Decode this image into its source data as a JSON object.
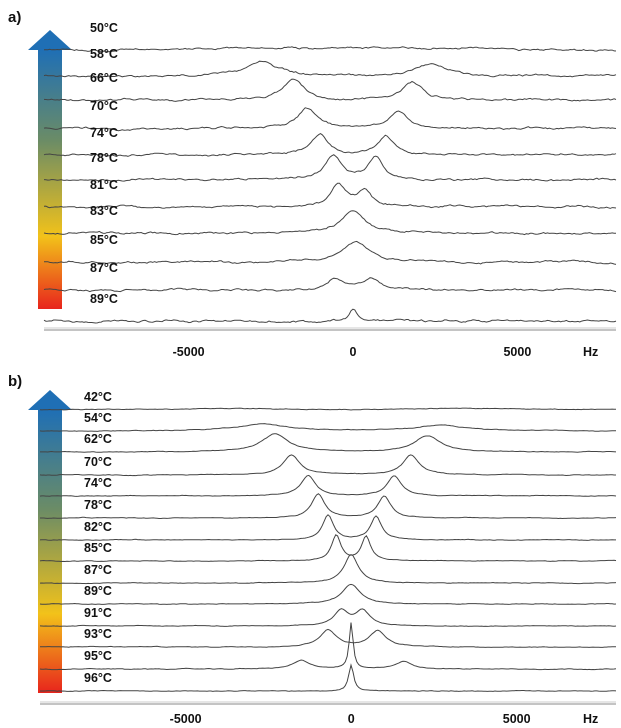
{
  "chart_data": [
    {
      "type": "line",
      "panel_label": "a)",
      "axis_unit": "Hz",
      "x_ticks": [
        -5000,
        0,
        5000
      ],
      "xlim": [
        -9400,
        8000
      ],
      "temperature_arrow_colors": [
        "#1f6fb5",
        "#6b8c66",
        "#f2c21a",
        "#e8241c"
      ],
      "series": [
        {
          "name": "50°C",
          "peaks": [
            {
              "x": -3000,
              "h": 0.12,
              "w": 1500
            },
            {
              "x": 3000,
              "h": 0.12,
              "w": 1500
            }
          ]
        },
        {
          "name": "58°C",
          "peaks": [
            {
              "x": -2800,
              "h": 0.7,
              "w": 600
            },
            {
              "x": 2400,
              "h": 0.55,
              "w": 550
            }
          ]
        },
        {
          "name": "66°C",
          "peaks": [
            {
              "x": -1800,
              "h": 1.05,
              "w": 380
            },
            {
              "x": 1800,
              "h": 0.9,
              "w": 380
            }
          ]
        },
        {
          "name": "70°C",
          "peaks": [
            {
              "x": -1400,
              "h": 1.0,
              "w": 340
            },
            {
              "x": 1400,
              "h": 0.85,
              "w": 340
            }
          ]
        },
        {
          "name": "74°C",
          "peaks": [
            {
              "x": -1000,
              "h": 1.05,
              "w": 320
            },
            {
              "x": 1000,
              "h": 0.95,
              "w": 300
            }
          ]
        },
        {
          "name": "78°C",
          "peaks": [
            {
              "x": -600,
              "h": 1.2,
              "w": 300
            },
            {
              "x": 700,
              "h": 1.15,
              "w": 290
            }
          ]
        },
        {
          "name": "81°C",
          "peaks": [
            {
              "x": -450,
              "h": 1.1,
              "w": 280
            },
            {
              "x": 350,
              "h": 0.85,
              "w": 260
            }
          ]
        },
        {
          "name": "83°C",
          "peaks": [
            {
              "x": 0,
              "h": 1.1,
              "w": 450
            }
          ]
        },
        {
          "name": "85°C",
          "peaks": [
            {
              "x": 100,
              "h": 1.0,
              "w": 480
            }
          ]
        },
        {
          "name": "87°C",
          "peaks": [
            {
              "x": -550,
              "h": 0.55,
              "w": 300
            },
            {
              "x": 550,
              "h": 0.55,
              "w": 300
            }
          ]
        },
        {
          "name": "89°C",
          "peaks": [
            {
              "x": 0,
              "h": 0.6,
              "w": 150
            }
          ]
        }
      ]
    },
    {
      "type": "line",
      "panel_label": "b)",
      "axis_unit": "Hz",
      "x_ticks": [
        -5000,
        0,
        5000
      ],
      "xlim": [
        -9400,
        8000
      ],
      "temperature_arrow_colors": [
        "#1f6fb5",
        "#6b8c66",
        "#f2c21a",
        "#e8241c"
      ],
      "series": [
        {
          "name": "42°C",
          "peaks": [
            {
              "x": -3500,
              "h": 0.08,
              "w": 2000
            },
            {
              "x": 3500,
              "h": 0.08,
              "w": 2000
            }
          ]
        },
        {
          "name": "54°C",
          "peaks": [
            {
              "x": -2700,
              "h": 0.35,
              "w": 900
            },
            {
              "x": 2700,
              "h": 0.3,
              "w": 900
            }
          ]
        },
        {
          "name": "62°C",
          "peaks": [
            {
              "x": -2300,
              "h": 0.95,
              "w": 480
            },
            {
              "x": 2300,
              "h": 0.85,
              "w": 480
            }
          ]
        },
        {
          "name": "70°C",
          "peaks": [
            {
              "x": -1800,
              "h": 1.05,
              "w": 300
            },
            {
              "x": 1800,
              "h": 1.05,
              "w": 300
            }
          ]
        },
        {
          "name": "74°C",
          "peaks": [
            {
              "x": -1300,
              "h": 1.1,
              "w": 260
            },
            {
              "x": 1300,
              "h": 1.05,
              "w": 260
            }
          ]
        },
        {
          "name": "78°C",
          "peaks": [
            {
              "x": -1000,
              "h": 1.25,
              "w": 240
            },
            {
              "x": 1000,
              "h": 1.15,
              "w": 240
            }
          ]
        },
        {
          "name": "82°C",
          "peaks": [
            {
              "x": -700,
              "h": 1.3,
              "w": 200
            },
            {
              "x": 750,
              "h": 1.25,
              "w": 200
            }
          ]
        },
        {
          "name": "85°C",
          "peaks": [
            {
              "x": -450,
              "h": 1.35,
              "w": 170
            },
            {
              "x": 450,
              "h": 1.3,
              "w": 170
            }
          ]
        },
        {
          "name": "87°C",
          "peaks": [
            {
              "x": 0,
              "h": 1.5,
              "w": 260
            }
          ]
        },
        {
          "name": "89°C",
          "peaks": [
            {
              "x": 0,
              "h": 1.05,
              "w": 330
            }
          ]
        },
        {
          "name": "91°C",
          "peaks": [
            {
              "x": -300,
              "h": 0.8,
              "w": 260
            },
            {
              "x": 350,
              "h": 0.8,
              "w": 260
            }
          ]
        },
        {
          "name": "93°C",
          "peaks": [
            {
              "x": -700,
              "h": 0.9,
              "w": 300
            },
            {
              "x": 800,
              "h": 0.85,
              "w": 300
            }
          ]
        },
        {
          "name": "95°C",
          "peaks": [
            {
              "x": -1500,
              "h": 0.45,
              "w": 300
            },
            {
              "x": 1600,
              "h": 0.4,
              "w": 300
            },
            {
              "x": 0,
              "h": 2.4,
              "w": 70
            }
          ]
        },
        {
          "name": "96°C",
          "peaks": [
            {
              "x": 0,
              "h": 1.35,
              "w": 90
            }
          ]
        }
      ]
    }
  ]
}
